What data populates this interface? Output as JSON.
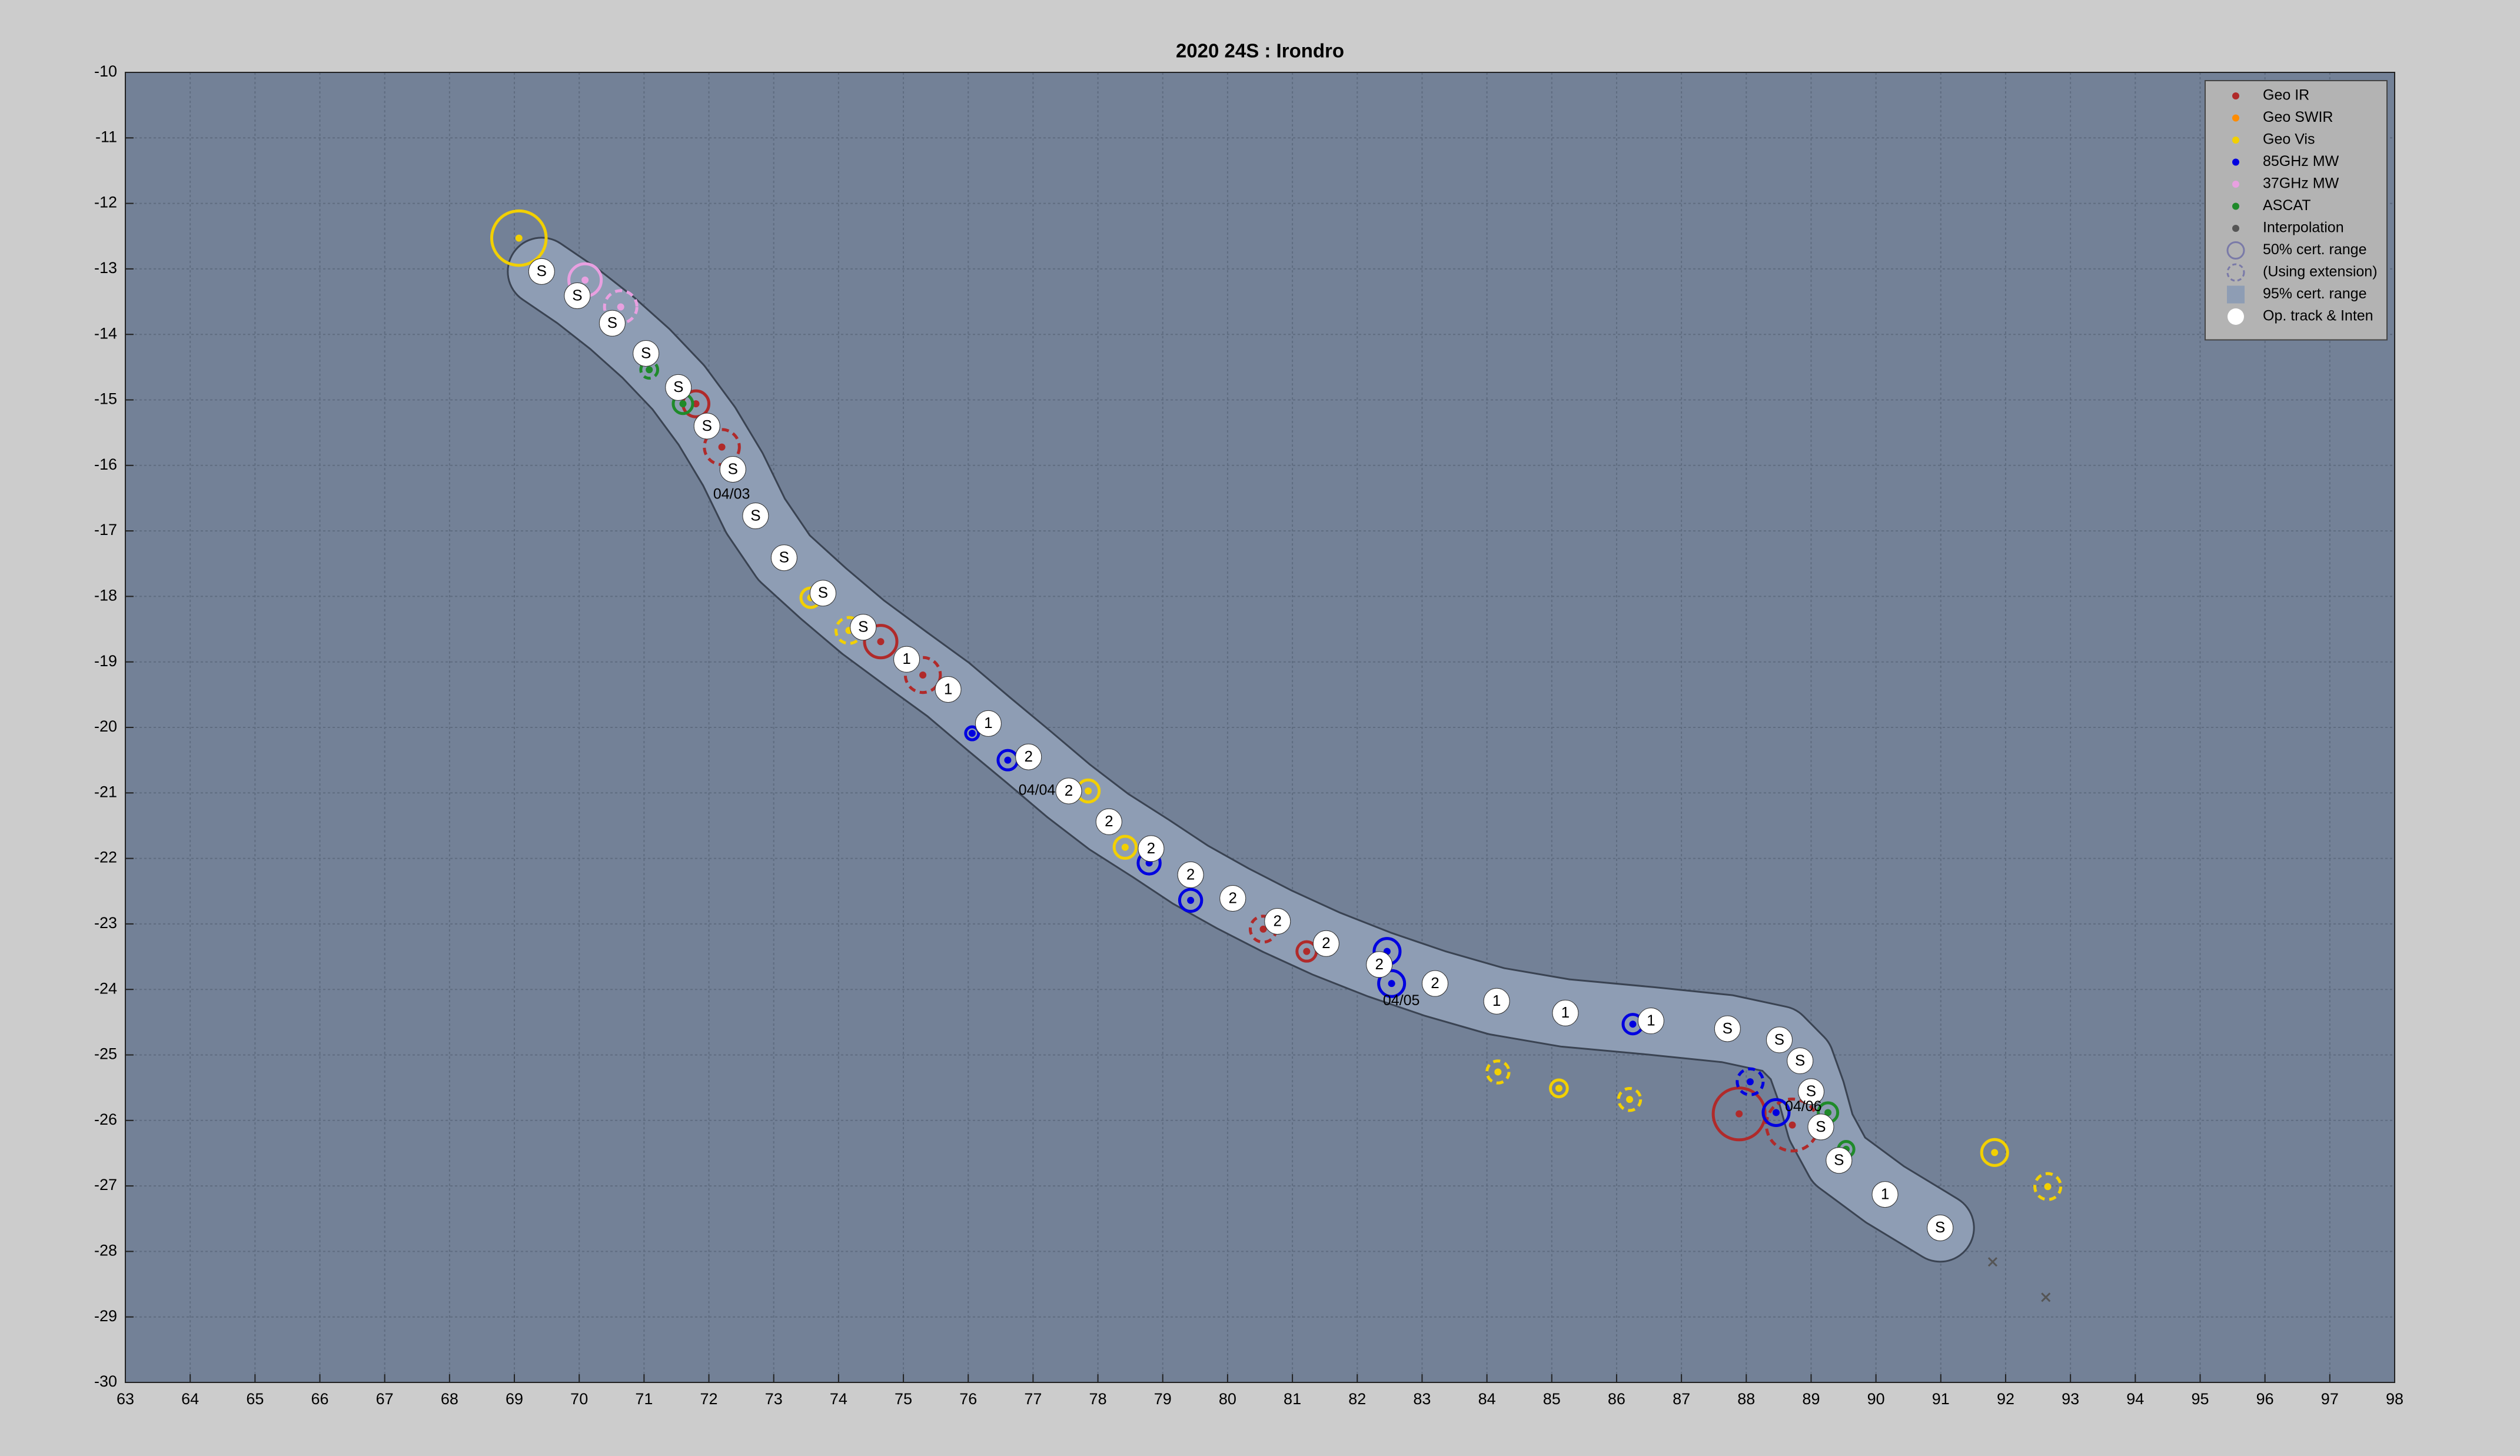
{
  "chart_data": {
    "type": "track-map",
    "title": "2020  24S :  Irondro",
    "xlim": [
      63,
      98
    ],
    "ylim": [
      -30,
      -10
    ],
    "xticks": [
      63,
      64,
      65,
      66,
      67,
      68,
      69,
      70,
      71,
      72,
      73,
      74,
      75,
      76,
      77,
      78,
      79,
      80,
      81,
      82,
      83,
      84,
      85,
      86,
      87,
      88,
      89,
      90,
      91,
      92,
      93,
      94,
      95,
      96,
      97,
      98
    ],
    "yticks": [
      -30,
      -29,
      -28,
      -27,
      -26,
      -25,
      -24,
      -23,
      -22,
      -21,
      -20,
      -19,
      -18,
      -17,
      -16,
      -15,
      -14,
      -13,
      -12,
      -11,
      -10
    ],
    "grid": true,
    "legend": {
      "position": "upper right",
      "extra": [
        {
          "label": "50% cert. range",
          "symbol": "ring"
        },
        {
          "label": "(Using extension)",
          "symbol": "dashed-ring"
        },
        {
          "label": "95% cert. range",
          "symbol": "square"
        }
      ]
    },
    "series": [
      {
        "name": "Geo IR",
        "color": "#b02a2a",
        "marker": "fix",
        "x": [
          71.8,
          72.2,
          74.65,
          75.3,
          80.55,
          81.22,
          87.89,
          88.71
        ],
        "y": [
          -15.06,
          -15.72,
          -18.69,
          -19.2,
          -23.08,
          -23.42,
          -25.9,
          -26.07
        ],
        "r": [
          0.2,
          0.27,
          0.25,
          0.27,
          0.2,
          0.15,
          0.4,
          0.4
        ],
        "extension": [
          false,
          true,
          false,
          true,
          true,
          false,
          false,
          true
        ]
      },
      {
        "name": "Geo SWIR",
        "color": "#ff8c00",
        "marker": "fix",
        "x": [],
        "y": [],
        "r": [],
        "extension": []
      },
      {
        "name": "Geo Vis",
        "color": "#f2d000",
        "marker": "fix",
        "x": [
          69.07,
          73.57,
          74.16,
          77.85,
          78.42,
          84.17,
          85.11,
          86.2,
          91.83,
          92.65
        ],
        "y": [
          -12.53,
          -18.02,
          -18.52,
          -20.97,
          -21.83,
          -25.26,
          -25.51,
          -25.68,
          -26.49,
          -27.01
        ],
        "r": [
          0.42,
          0.15,
          0.2,
          0.17,
          0.17,
          0.17,
          0.13,
          0.17,
          0.2,
          0.2
        ],
        "extension": [
          false,
          false,
          true,
          false,
          false,
          true,
          false,
          true,
          false,
          true
        ]
      },
      {
        "name": "85GHz MW",
        "color": "#0000e0",
        "marker": "fix",
        "x": [
          76.06,
          76.61,
          78.79,
          79.43,
          82.46,
          82.53,
          86.25,
          88.06,
          88.46
        ],
        "y": [
          -20.09,
          -20.5,
          -22.07,
          -22.64,
          -23.42,
          -23.91,
          -24.53,
          -25.41,
          -25.88
        ],
        "r": [
          0.1,
          0.15,
          0.17,
          0.17,
          0.2,
          0.2,
          0.15,
          0.2,
          0.2
        ],
        "extension": [
          false,
          false,
          false,
          false,
          false,
          false,
          false,
          true,
          false
        ]
      },
      {
        "name": "37GHz MW",
        "color": "#e8a0e0",
        "marker": "fix",
        "x": [
          70.09,
          70.64
        ],
        "y": [
          -13.17,
          -13.58
        ],
        "r": [
          0.25,
          0.25
        ],
        "extension": [
          false,
          true
        ]
      },
      {
        "name": "ASCAT",
        "color": "#1f8a2a",
        "marker": "fix",
        "x": [
          71.08,
          71.6,
          72.72,
          73.14,
          89.26,
          89.54
        ],
        "y": [
          -14.54,
          -15.06,
          -16.77,
          -17.41,
          -25.88,
          -26.44
        ],
        "r": [
          0.13,
          0.15,
          0.13,
          0.13,
          0.15,
          0.12
        ],
        "extension": [
          true,
          false,
          true,
          false,
          false,
          false
        ]
      },
      {
        "name": "Interpolation",
        "color": "#555555",
        "marker": "x",
        "x": [
          91.8,
          92.62
        ],
        "y": [
          -28.16,
          -28.7
        ]
      },
      {
        "name": "Op. track & Inten",
        "color": "#ffffff",
        "marker": "track",
        "x": [
          69.42,
          69.97,
          70.51,
          71.03,
          71.53,
          71.97,
          72.37,
          72.72,
          73.16,
          73.76,
          74.38,
          75.05,
          75.69,
          76.31,
          76.93,
          77.55,
          78.17,
          78.82,
          79.43,
          80.08,
          80.77,
          81.52,
          82.34,
          83.2,
          84.15,
          85.21,
          86.53,
          87.71,
          88.51,
          88.83,
          89.0,
          89.15,
          89.43,
          90.14,
          90.99
        ],
        "y": [
          -13.04,
          -13.41,
          -13.83,
          -14.29,
          -14.81,
          -15.4,
          -16.06,
          -16.77,
          -17.41,
          -17.95,
          -18.47,
          -18.96,
          -19.42,
          -19.94,
          -20.45,
          -20.97,
          -21.44,
          -21.85,
          -22.25,
          -22.61,
          -22.96,
          -23.3,
          -23.62,
          -23.91,
          -24.18,
          -24.36,
          -24.48,
          -24.6,
          -24.77,
          -25.09,
          -25.56,
          -26.1,
          -26.61,
          -27.13,
          -27.64
        ],
        "labels": [
          "S",
          "S",
          "S",
          "S",
          "S",
          "S",
          "S",
          "S",
          "S",
          "S",
          "S",
          "1",
          "1",
          "1",
          "2",
          "2",
          "2",
          "2",
          "2",
          "2",
          "2",
          "2",
          "2",
          "2",
          "1",
          "1",
          "1",
          "S",
          "S",
          "S",
          "S",
          "S",
          "S",
          "1",
          "S"
        ]
      }
    ],
    "annotations": [
      {
        "text": "04/03",
        "x": 72.35,
        "y": -16.45
      },
      {
        "text": "04/04",
        "x": 77.06,
        "y": -20.97
      },
      {
        "text": "04/05",
        "x": 82.68,
        "y": -24.18
      },
      {
        "text": "04/06",
        "x": 88.88,
        "y": -25.8
      }
    ]
  }
}
